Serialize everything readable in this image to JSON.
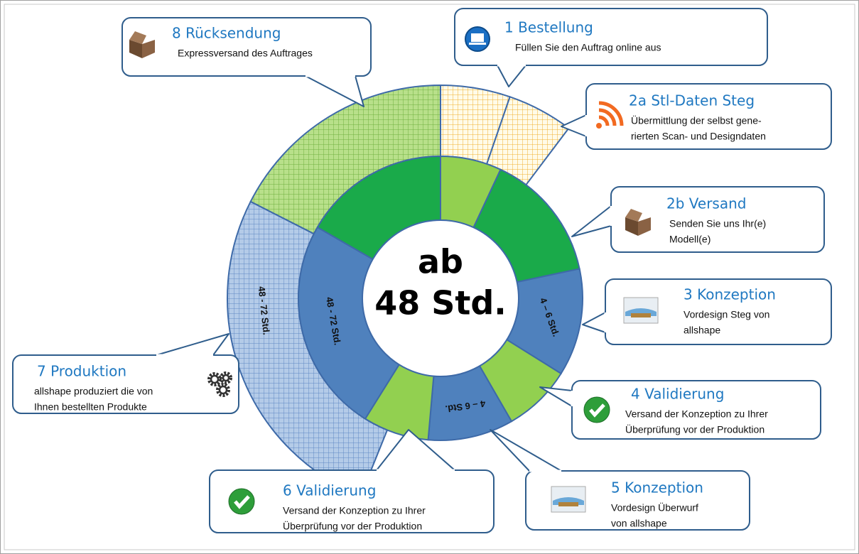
{
  "center": {
    "line1": "ab",
    "line2": "48 Std."
  },
  "ring_labels": [
    "4 – 6 Std.",
    "4 – 6 Std.",
    "48 - 72 Std.",
    "48 - 72 Std."
  ],
  "callouts": [
    {
      "title": "1 Bestellung",
      "lines": [
        "Füllen Sie den Auftrag online aus"
      ]
    },
    {
      "title": "2a Stl-Daten Steg",
      "lines": [
        "Übermittlung der selbst gene-",
        "rierten Scan- und Designdaten"
      ]
    },
    {
      "title": "2b Versand",
      "lines": [
        "Senden Sie uns Ihr(e)",
        "Modell(e)"
      ]
    },
    {
      "title": "3 Konzeption",
      "lines": [
        "Vordesign Steg von",
        "allshape"
      ]
    },
    {
      "title": "4 Validierung",
      "lines": [
        "Versand der Konzeption zu Ihrer",
        "Überprüfung vor der Produktion"
      ]
    },
    {
      "title": "5 Konzeption",
      "lines": [
        "Vordesign Überwurf",
        "von allshape"
      ]
    },
    {
      "title": "6 Validierung",
      "lines": [
        "Versand der Konzeption zu Ihrer",
        "Überprüfung vor der Produktion"
      ]
    },
    {
      "title": "7 Produktion",
      "lines": [
        "allshape produziert die von",
        "Ihnen bestellten Produkte"
      ]
    },
    {
      "title": "8 Rücksendung",
      "lines": [
        "Expressversand des Auftrages"
      ]
    }
  ]
}
